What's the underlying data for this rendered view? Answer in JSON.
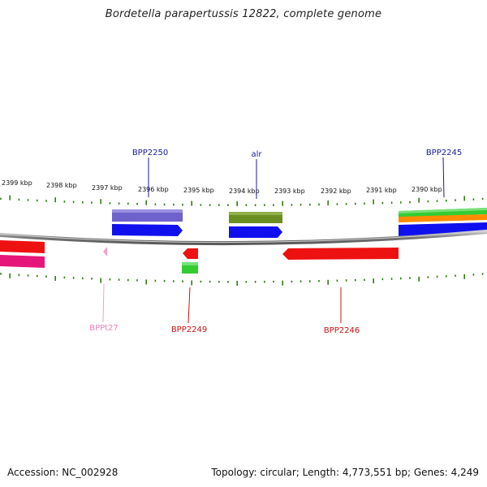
{
  "title": "Bordetella parapertussis 12822, complete genome",
  "footer": {
    "accession": "Accession: NC_002928",
    "summary": "Topology: circular; Length: 4,773,551 bp; Genes: 4,249"
  },
  "ruler": {
    "tick_labels": [
      "2399 kbp",
      "2398 kbp",
      "2397 kbp",
      "2396 kbp",
      "2395 kbp",
      "2394 kbp",
      "2393 kbp",
      "2392 kbp",
      "2391 kbp",
      "2390 kbp"
    ],
    "tick_color": "#2e7d12"
  },
  "backbone_color": "#8c8c8c",
  "gene_labels": [
    {
      "text": "BPP2250",
      "color": "#1a1aa0",
      "side": "top"
    },
    {
      "text": "alr",
      "color": "#1a1aa0",
      "side": "top"
    },
    {
      "text": "BPP2245",
      "color": "#1a1aa0",
      "side": "top"
    },
    {
      "text": "BPPt27",
      "color": "#f07fb8",
      "side": "bottom"
    },
    {
      "text": "BPP2249",
      "color": "#cc1111",
      "side": "bottom"
    },
    {
      "text": "BPP2246",
      "color": "#cc1111",
      "side": "bottom"
    }
  ],
  "feature_colors": {
    "cds_forward": "#1010ee",
    "cds_reverse": "#ee1111",
    "cog_purple": "#6f62cc",
    "cog_olive": "#6b8e23",
    "cog_green": "#33cc33",
    "cog_orange": "#ff8c00",
    "cog_magenta": "#e6157a",
    "trna": "#f4a0c8"
  }
}
